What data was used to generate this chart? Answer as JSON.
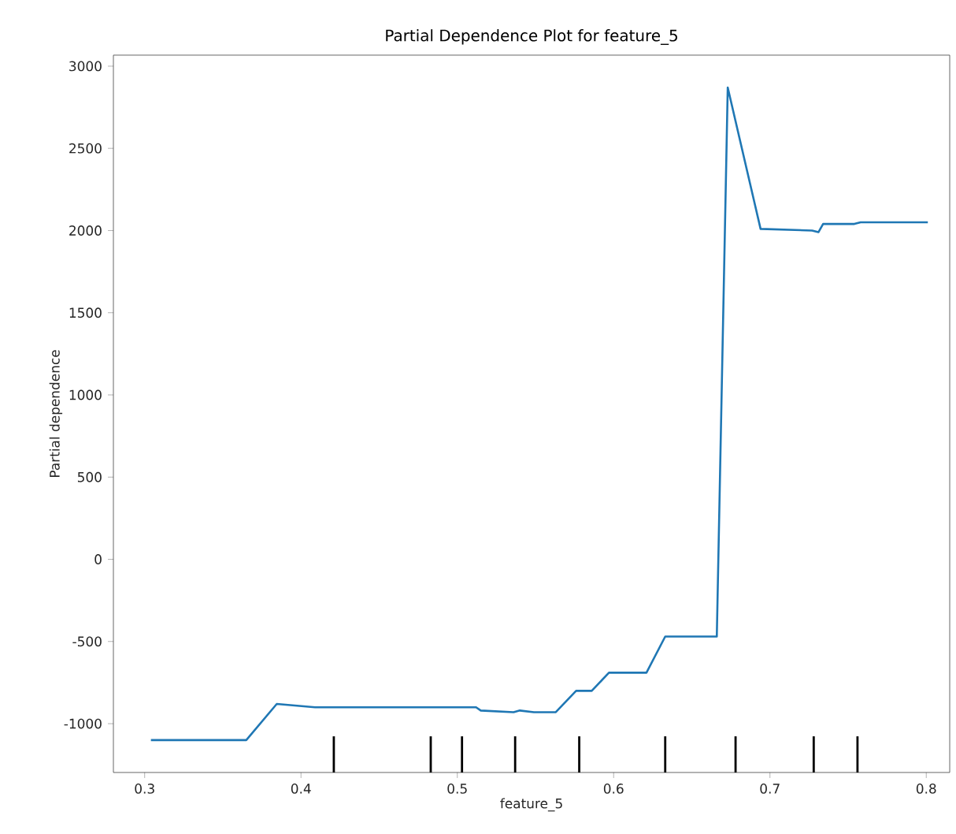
{
  "chart_data": {
    "type": "line",
    "title": "Partial Dependence Plot for feature_5",
    "xlabel": "feature_5",
    "ylabel": "Partial dependence",
    "xlim": [
      0.28,
      0.815
    ],
    "ylim": [
      -1297,
      3067
    ],
    "xticks": [
      0.3,
      0.4,
      0.5,
      0.6,
      0.7,
      0.8
    ],
    "yticks": [
      -1000,
      -500,
      0,
      500,
      1000,
      1500,
      2000,
      2500,
      3000
    ],
    "grid": false,
    "series": [
      {
        "color": "#1f77b4",
        "x": [
          0.304,
          0.365,
          0.3845,
          0.409,
          0.448,
          0.466,
          0.49,
          0.512,
          0.515,
          0.536,
          0.54,
          0.549,
          0.563,
          0.576,
          0.586,
          0.597,
          0.621,
          0.633,
          0.666,
          0.673,
          0.694,
          0.727,
          0.731,
          0.734,
          0.754,
          0.758,
          0.801
        ],
        "values": [
          -1100,
          -1100,
          -880,
          -900,
          -900,
          -900,
          -900,
          -900,
          -920,
          -930,
          -920,
          -930,
          -930,
          -800,
          -800,
          -690,
          -690,
          -470,
          -470,
          2870,
          2010,
          2000,
          1990,
          2040,
          2040,
          2050,
          2050
        ]
      },
      {
        "type": "bar",
        "color": "#000000",
        "x": [
          0.421,
          0.483,
          0.503,
          0.537,
          0.578,
          0.633,
          0.678,
          0.728,
          0.756
        ],
        "base": [
          -1297,
          -1297,
          -1297,
          -1297,
          -1297,
          -1297,
          -1297,
          -1297,
          -1297
        ],
        "values": [
          220,
          220,
          220,
          220,
          220,
          220,
          220,
          220,
          220
        ]
      }
    ]
  }
}
